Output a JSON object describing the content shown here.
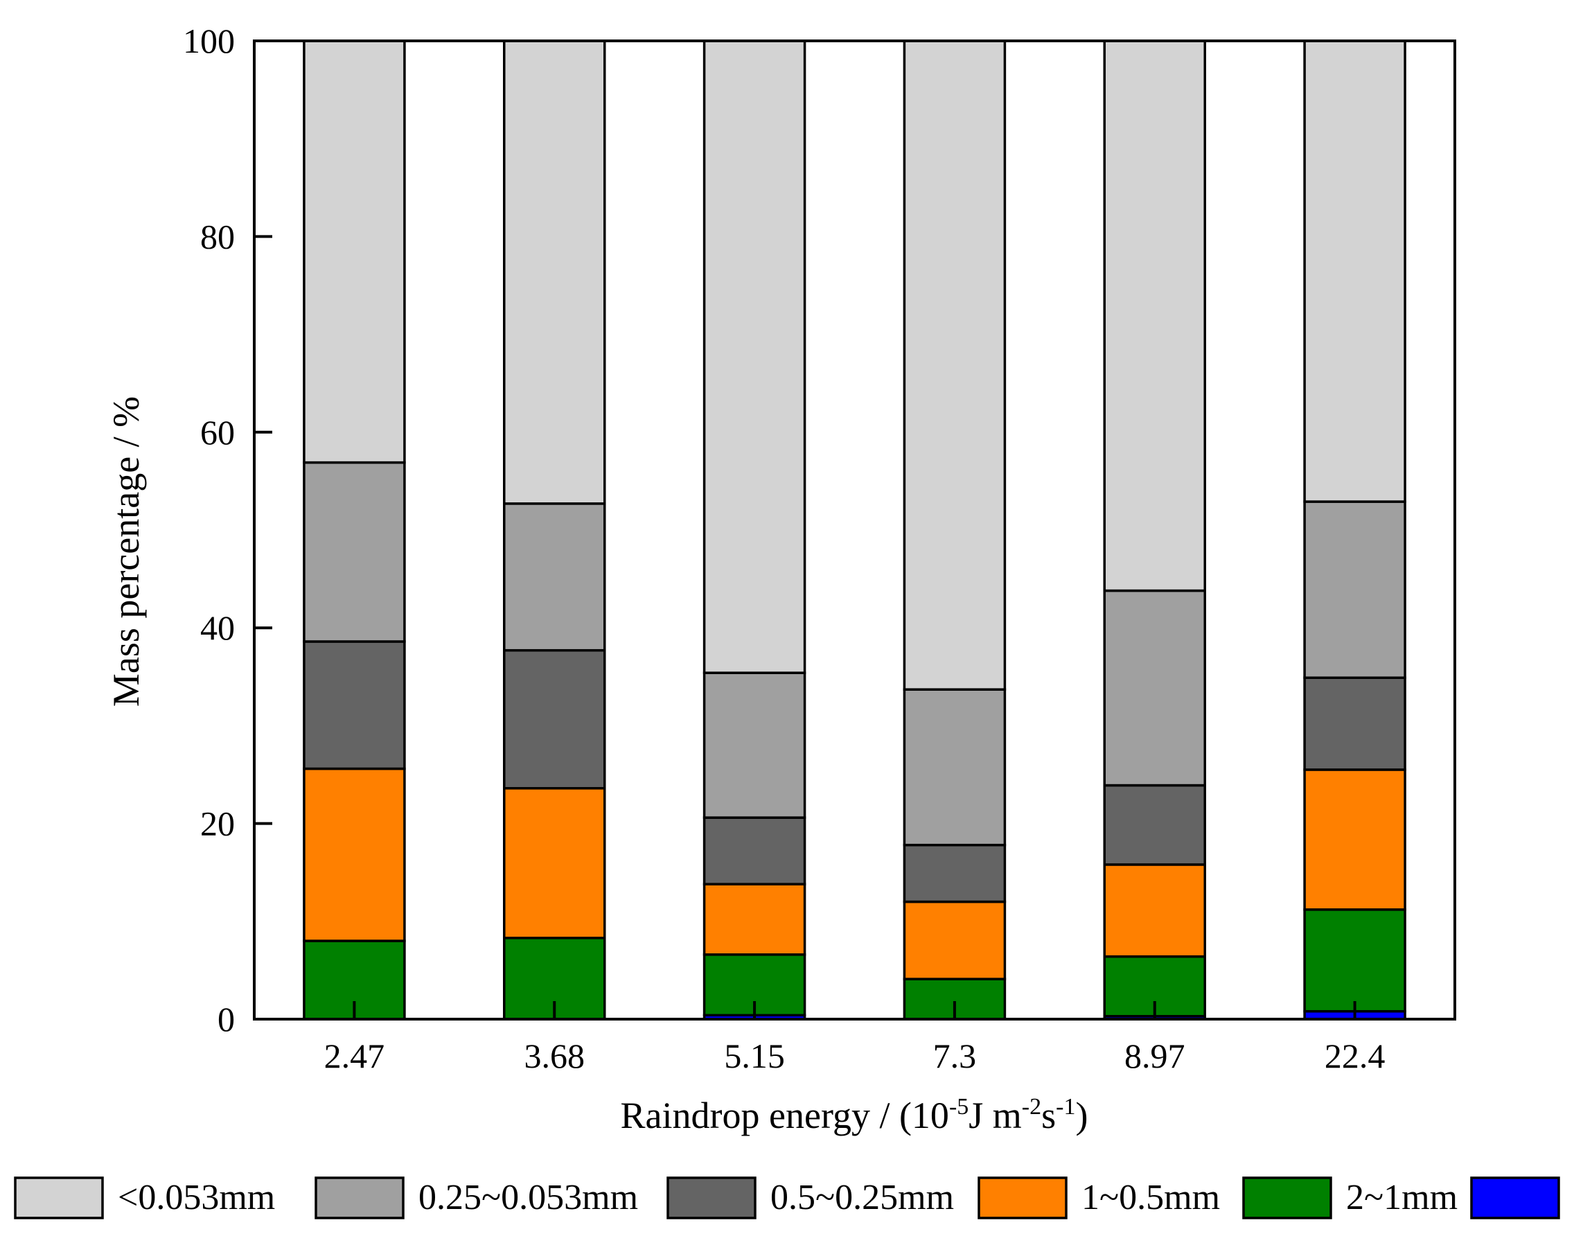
{
  "chart_data": {
    "type": "bar",
    "stacked": true,
    "categories": [
      "2.47",
      "3.68",
      "5.15",
      "7.3",
      "8.97",
      "22.4"
    ],
    "series": [
      {
        "name": "",
        "color": "#0000ff",
        "values": [
          0.0,
          0.0,
          0.4,
          0.0,
          0.3,
          0.8
        ]
      },
      {
        "name": "2~1mm",
        "color": "#008000",
        "values": [
          8.0,
          8.3,
          6.2,
          4.1,
          6.1,
          10.4
        ]
      },
      {
        "name": "1~0.5mm",
        "color": "#ff8000",
        "values": [
          17.6,
          15.3,
          7.2,
          7.9,
          9.4,
          14.3
        ]
      },
      {
        "name": "0.5~0.25mm",
        "color": "#646464",
        "values": [
          13.0,
          14.1,
          6.8,
          5.8,
          8.1,
          9.4
        ]
      },
      {
        "name": "0.25~0.053mm",
        "color": "#a0a0a0",
        "values": [
          18.3,
          15.0,
          14.8,
          15.9,
          19.9,
          18.0
        ]
      },
      {
        "name": "<0.053mm",
        "color": "#d3d3d3",
        "values": [
          43.1,
          47.3,
          64.6,
          66.3,
          56.2,
          47.1
        ]
      }
    ],
    "legend_order": [
      5,
      4,
      3,
      2,
      1,
      0
    ],
    "legend_labels": [
      "<0.053mm",
      "0.25~0.053mm",
      "0.5~0.25mm",
      "1~0.5mm",
      "2~1mm",
      ""
    ],
    "ylim": [
      0,
      100
    ],
    "yticks": [
      "0",
      "20",
      "40",
      "60",
      "80",
      "100"
    ],
    "ylabel": "Mass percentage / %",
    "xlabel_parts": [
      "Raindrop energy / (10",
      "-5",
      "J m",
      "-2",
      "s",
      "-1",
      ")"
    ],
    "legend_placement": "bottom",
    "grid": false
  }
}
